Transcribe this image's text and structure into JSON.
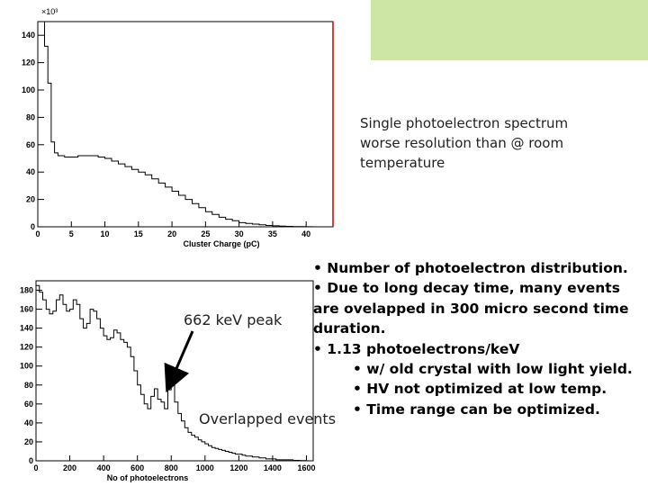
{
  "slide": {
    "accent_color": "#cde6a6"
  },
  "annotation_top": {
    "lines": [
      "Single photoelectron spectrum",
      "worse resolution than @ room",
      "temperature"
    ]
  },
  "label_peak": "662 keV peak",
  "label_overlapped": "Overlapped events",
  "bullets": [
    "•  Number of photoelectron distribution.",
    "•  Due to long decay time, many events",
    "are ovelapped in 300 micro second time",
    "duration.",
    "• 1.13 photoelectrons/keV",
    "•  w/ old crystal with low light yield.",
    "•  HV not optimized at low temp.",
    "•  Time range can be optimized."
  ],
  "chart_data": [
    {
      "type": "histogram",
      "title": "",
      "xlabel": "Cluster Charge (pC)",
      "ylabel": "",
      "y_multiplier": "×10³",
      "xlim": [
        0,
        44
      ],
      "ylim": [
        0,
        150
      ],
      "xticks": [
        0,
        5,
        10,
        15,
        20,
        25,
        30,
        35,
        40
      ],
      "yticks": [
        0,
        20,
        40,
        60,
        80,
        100,
        120,
        140
      ],
      "line_color": "#000000",
      "frame_right_color": "#cc0000",
      "x": [
        0.5,
        1.0,
        1.5,
        2.0,
        2.5,
        3.0,
        4,
        5,
        6,
        7,
        8,
        9,
        10,
        11,
        12,
        13,
        14,
        15,
        16,
        17,
        18,
        19,
        20,
        21,
        22,
        23,
        24,
        25,
        26,
        27,
        28,
        29,
        30,
        31,
        32,
        33,
        34,
        35,
        36,
        37,
        38,
        39,
        40
      ],
      "values": [
        150,
        132,
        105,
        62,
        54,
        52,
        51,
        51,
        52,
        52,
        52,
        51,
        50,
        48,
        46,
        44,
        42,
        40,
        38,
        35,
        32,
        29,
        26,
        23,
        20,
        17,
        14,
        11,
        9,
        7,
        5.5,
        4.5,
        3,
        2.5,
        2,
        1.5,
        1,
        0.7,
        0.5,
        0.3,
        0.2,
        0.1,
        0.05
      ]
    },
    {
      "type": "histogram",
      "title": "",
      "xlabel": "No of photoelectrons",
      "ylabel": "",
      "xlim": [
        0,
        1640
      ],
      "ylim": [
        0,
        190
      ],
      "xticks": [
        0,
        200,
        400,
        600,
        800,
        1000,
        1200,
        1400,
        1600
      ],
      "yticks": [
        0,
        20,
        40,
        60,
        80,
        100,
        120,
        140,
        160,
        180
      ],
      "line_color": "#000000",
      "x": [
        0,
        20,
        40,
        60,
        80,
        100,
        120,
        140,
        160,
        180,
        200,
        220,
        240,
        260,
        280,
        300,
        320,
        340,
        360,
        380,
        400,
        420,
        440,
        460,
        480,
        500,
        520,
        540,
        560,
        580,
        600,
        620,
        640,
        660,
        680,
        700,
        720,
        740,
        760,
        780,
        800,
        820,
        840,
        860,
        880,
        900,
        920,
        940,
        960,
        980,
        1000,
        1020,
        1040,
        1060,
        1080,
        1100,
        1120,
        1140,
        1160,
        1180,
        1200,
        1220,
        1240,
        1260,
        1280,
        1300,
        1320,
        1340,
        1360,
        1380,
        1400,
        1420,
        1440,
        1460,
        1480,
        1500,
        1520,
        1540,
        1560,
        1580
      ],
      "values": [
        185,
        178,
        170,
        160,
        155,
        158,
        170,
        175,
        165,
        158,
        160,
        170,
        165,
        150,
        140,
        145,
        160,
        158,
        150,
        140,
        132,
        128,
        130,
        138,
        135,
        128,
        125,
        120,
        110,
        95,
        80,
        70,
        60,
        55,
        68,
        76,
        65,
        62,
        55,
        75,
        82,
        62,
        50,
        42,
        35,
        30,
        27,
        25,
        22,
        20,
        18,
        16,
        14,
        13,
        12,
        11,
        10,
        9,
        8,
        7,
        7,
        6,
        5,
        5,
        4,
        4,
        3,
        3,
        2,
        2,
        2,
        1,
        1,
        1,
        1,
        1,
        0.5,
        0.5,
        0.3,
        0.2
      ]
    }
  ]
}
